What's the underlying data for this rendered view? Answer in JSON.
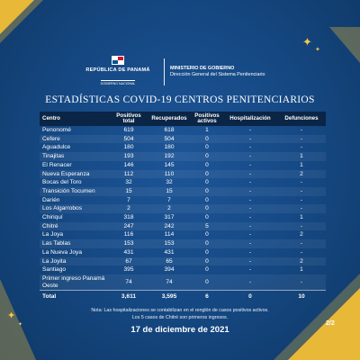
{
  "header": {
    "republic": "REPÚBLICA DE PANAMÁ",
    "government": "GOBIERNO NACIONAL",
    "ministry": "MINISTERIO DE GOBIERNO",
    "directorate": "Dirección General del Sistema Penitenciario"
  },
  "title": "ESTADÍSTICAS COVID-19 CENTROS PENITENCIARIOS",
  "table": {
    "headers": {
      "centro": "Centro",
      "positivos": "Positivos total",
      "recuperados": "Recuperados",
      "activos": "Positivos activos",
      "hospitalizacion": "Hospitalización",
      "defunciones": "Defunciones"
    },
    "rows": [
      {
        "centro": "Penonomé",
        "positivos": "619",
        "recuperados": "618",
        "activos": "1",
        "hospitalizacion": "-",
        "defunciones": "-"
      },
      {
        "centro": "Cefere",
        "positivos": "504",
        "recuperados": "504",
        "activos": "0",
        "hospitalizacion": "-",
        "defunciones": "-"
      },
      {
        "centro": "Aguadulce",
        "positivos": "180",
        "recuperados": "180",
        "activos": "0",
        "hospitalizacion": "-",
        "defunciones": "-"
      },
      {
        "centro": "Tinajitas",
        "positivos": "193",
        "recuperados": "192",
        "activos": "0",
        "hospitalizacion": "-",
        "defunciones": "1"
      },
      {
        "centro": "El Renacer",
        "positivos": "146",
        "recuperados": "145",
        "activos": "0",
        "hospitalizacion": "-",
        "defunciones": "1"
      },
      {
        "centro": "Nueva Esperanza",
        "positivos": "112",
        "recuperados": "110",
        "activos": "0",
        "hospitalizacion": "-",
        "defunciones": "2"
      },
      {
        "centro": "Bocas del Toro",
        "positivos": "32",
        "recuperados": "32",
        "activos": "0",
        "hospitalizacion": "-",
        "defunciones": "-"
      },
      {
        "centro": "Transición Tocumen",
        "positivos": "15",
        "recuperados": "15",
        "activos": "0",
        "hospitalizacion": "-",
        "defunciones": "-"
      },
      {
        "centro": "Darién",
        "positivos": "7",
        "recuperados": "7",
        "activos": "0",
        "hospitalizacion": "-",
        "defunciones": "-"
      },
      {
        "centro": "Los Algarrobos",
        "positivos": "2",
        "recuperados": "2",
        "activos": "0",
        "hospitalizacion": "-",
        "defunciones": "-"
      },
      {
        "centro": "Chiriquí",
        "positivos": "318",
        "recuperados": "317",
        "activos": "0",
        "hospitalizacion": "-",
        "defunciones": "1"
      },
      {
        "centro": "Chitré",
        "positivos": "247",
        "recuperados": "242",
        "activos": "5",
        "hospitalizacion": "-",
        "defunciones": "-"
      },
      {
        "centro": "La Joya",
        "positivos": "116",
        "recuperados": "114",
        "activos": "0",
        "hospitalizacion": "-",
        "defunciones": "2"
      },
      {
        "centro": "Las Tablas",
        "positivos": "153",
        "recuperados": "153",
        "activos": "0",
        "hospitalizacion": "-",
        "defunciones": "-"
      },
      {
        "centro": "La Nueva Joya",
        "positivos": "431",
        "recuperados": "431",
        "activos": "0",
        "hospitalizacion": "-",
        "defunciones": "-"
      },
      {
        "centro": "La Joyita",
        "positivos": "67",
        "recuperados": "65",
        "activos": "0",
        "hospitalizacion": "-",
        "defunciones": "2"
      },
      {
        "centro": "Santiago",
        "positivos": "395",
        "recuperados": "394",
        "activos": "0",
        "hospitalizacion": "-",
        "defunciones": "1"
      },
      {
        "centro": "Primer ingreso Panamá Oeste",
        "positivos": "74",
        "recuperados": "74",
        "activos": "0",
        "hospitalizacion": "-",
        "defunciones": "-"
      }
    ],
    "total": {
      "centro": "Total",
      "positivos": "3,611",
      "recuperados": "3,595",
      "activos": "6",
      "hospitalizacion": "0",
      "defunciones": "10"
    }
  },
  "note": {
    "line1": "Nota: Las hospitalizaciones se contabilizan en el renglón de casos positivos activos.",
    "line2": "Los 5 casos de Chitré son primeros ingresos."
  },
  "date": "17 de diciembre de 2021",
  "page": "2/2",
  "colors": {
    "background": "#164a86",
    "accent": "#e8b838",
    "header_row": "#0b2546"
  }
}
